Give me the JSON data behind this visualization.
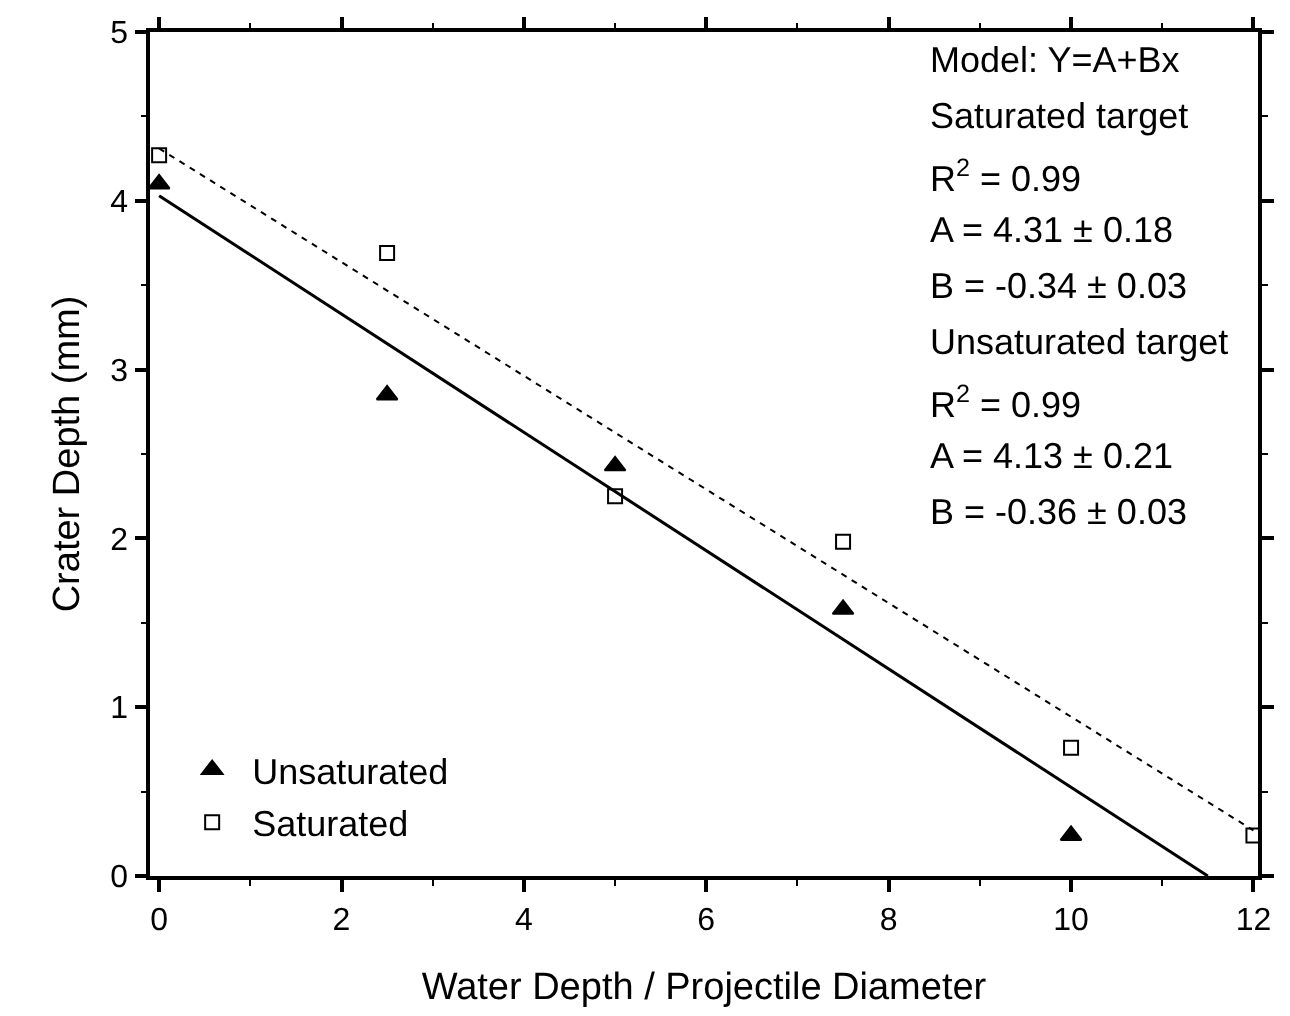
{
  "chart_data": {
    "type": "scatter",
    "xlabel": "Water Depth / Projectile Diameter",
    "ylabel": "Crater Depth (mm)",
    "xlim": [
      -0.1,
      12.05
    ],
    "xticks": [
      0,
      2,
      4,
      6,
      8,
      10,
      12
    ],
    "ylim": [
      0,
      5
    ],
    "yticks": [
      0,
      1,
      2,
      3,
      4,
      5
    ],
    "legend": "bottom left",
    "series": [
      {
        "name": "Unsaturated",
        "marker": "triangle",
        "color": "#000000",
        "x": [
          0,
          2.5,
          5,
          7.5,
          10
        ],
        "values": [
          4.1,
          2.85,
          2.43,
          1.58,
          0.24
        ]
      },
      {
        "name": "Saturated",
        "marker": "square",
        "color": "#000000",
        "x": [
          0,
          2.5,
          5,
          7.5,
          10,
          12
        ],
        "values": [
          4.27,
          3.69,
          2.25,
          1.98,
          0.76,
          0.24
        ]
      },
      {
        "type": "line",
        "line_style": "solid",
        "color": "#000000",
        "x": [
          0,
          11.5
        ],
        "values": [
          4.03,
          0
        ]
      },
      {
        "type": "line",
        "line_style": "dotted",
        "color": "#000000",
        "x": [
          0,
          12
        ],
        "values": [
          4.31,
          0.27
        ]
      }
    ],
    "annotations": [
      "Model: Y=A+Bx",
      "Saturated target",
      "R$^{2}$ = 0.99",
      "A = 4.31 ± 0.18",
      "B = -0.34 ± 0.03",
      "Unsaturated target",
      "R$^{2}$ = 0.99",
      "A = 4.13 ± 0.21",
      "B = -0.36 ± 0.03"
    ]
  }
}
